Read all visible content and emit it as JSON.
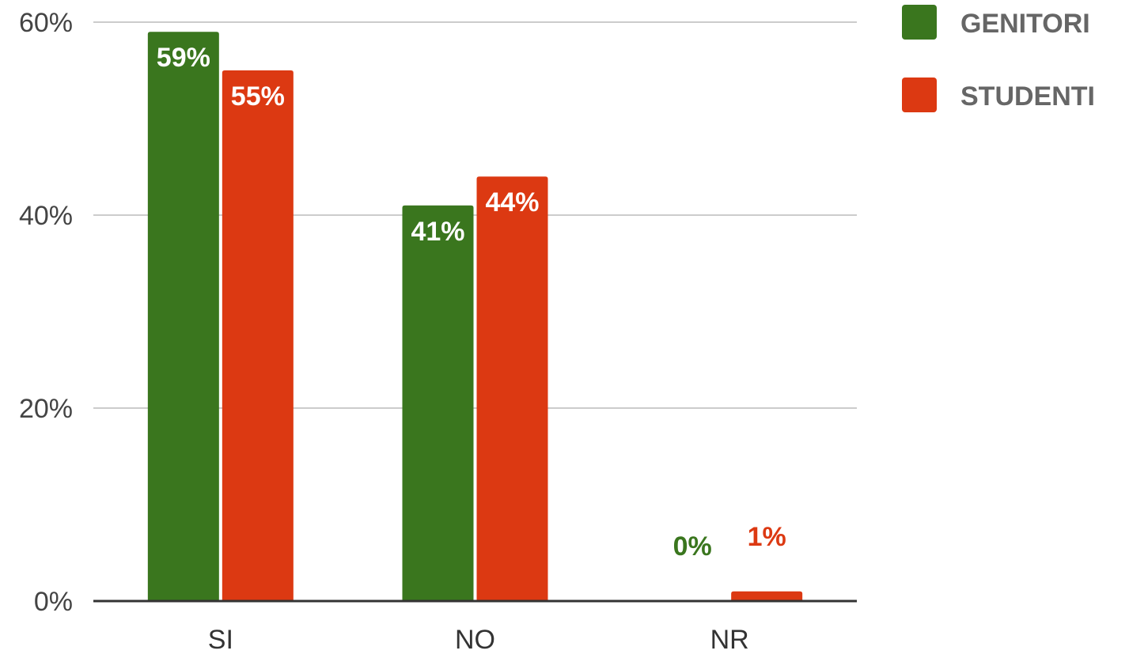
{
  "chart_data": {
    "type": "bar",
    "categories": [
      "SI",
      "NO",
      "NR"
    ],
    "series": [
      {
        "name": "GENITORI",
        "values": [
          59,
          41,
          0
        ],
        "labels": [
          "59%",
          "41%",
          "0%"
        ],
        "color": "#3a761e"
      },
      {
        "name": "STUDENTI",
        "values": [
          55,
          44,
          1
        ],
        "labels": [
          "55%",
          "44%",
          "1%"
        ],
        "color": "#dc3912"
      }
    ],
    "y_ticks": [
      {
        "value": 0,
        "label": "0%"
      },
      {
        "value": 20,
        "label": "20%"
      },
      {
        "value": 40,
        "label": "40%"
      },
      {
        "value": 60,
        "label": "60%"
      }
    ],
    "ylim": [
      0,
      60
    ],
    "grid": true,
    "legend_position": "right",
    "title": "",
    "xlabel": "",
    "ylabel": ""
  }
}
